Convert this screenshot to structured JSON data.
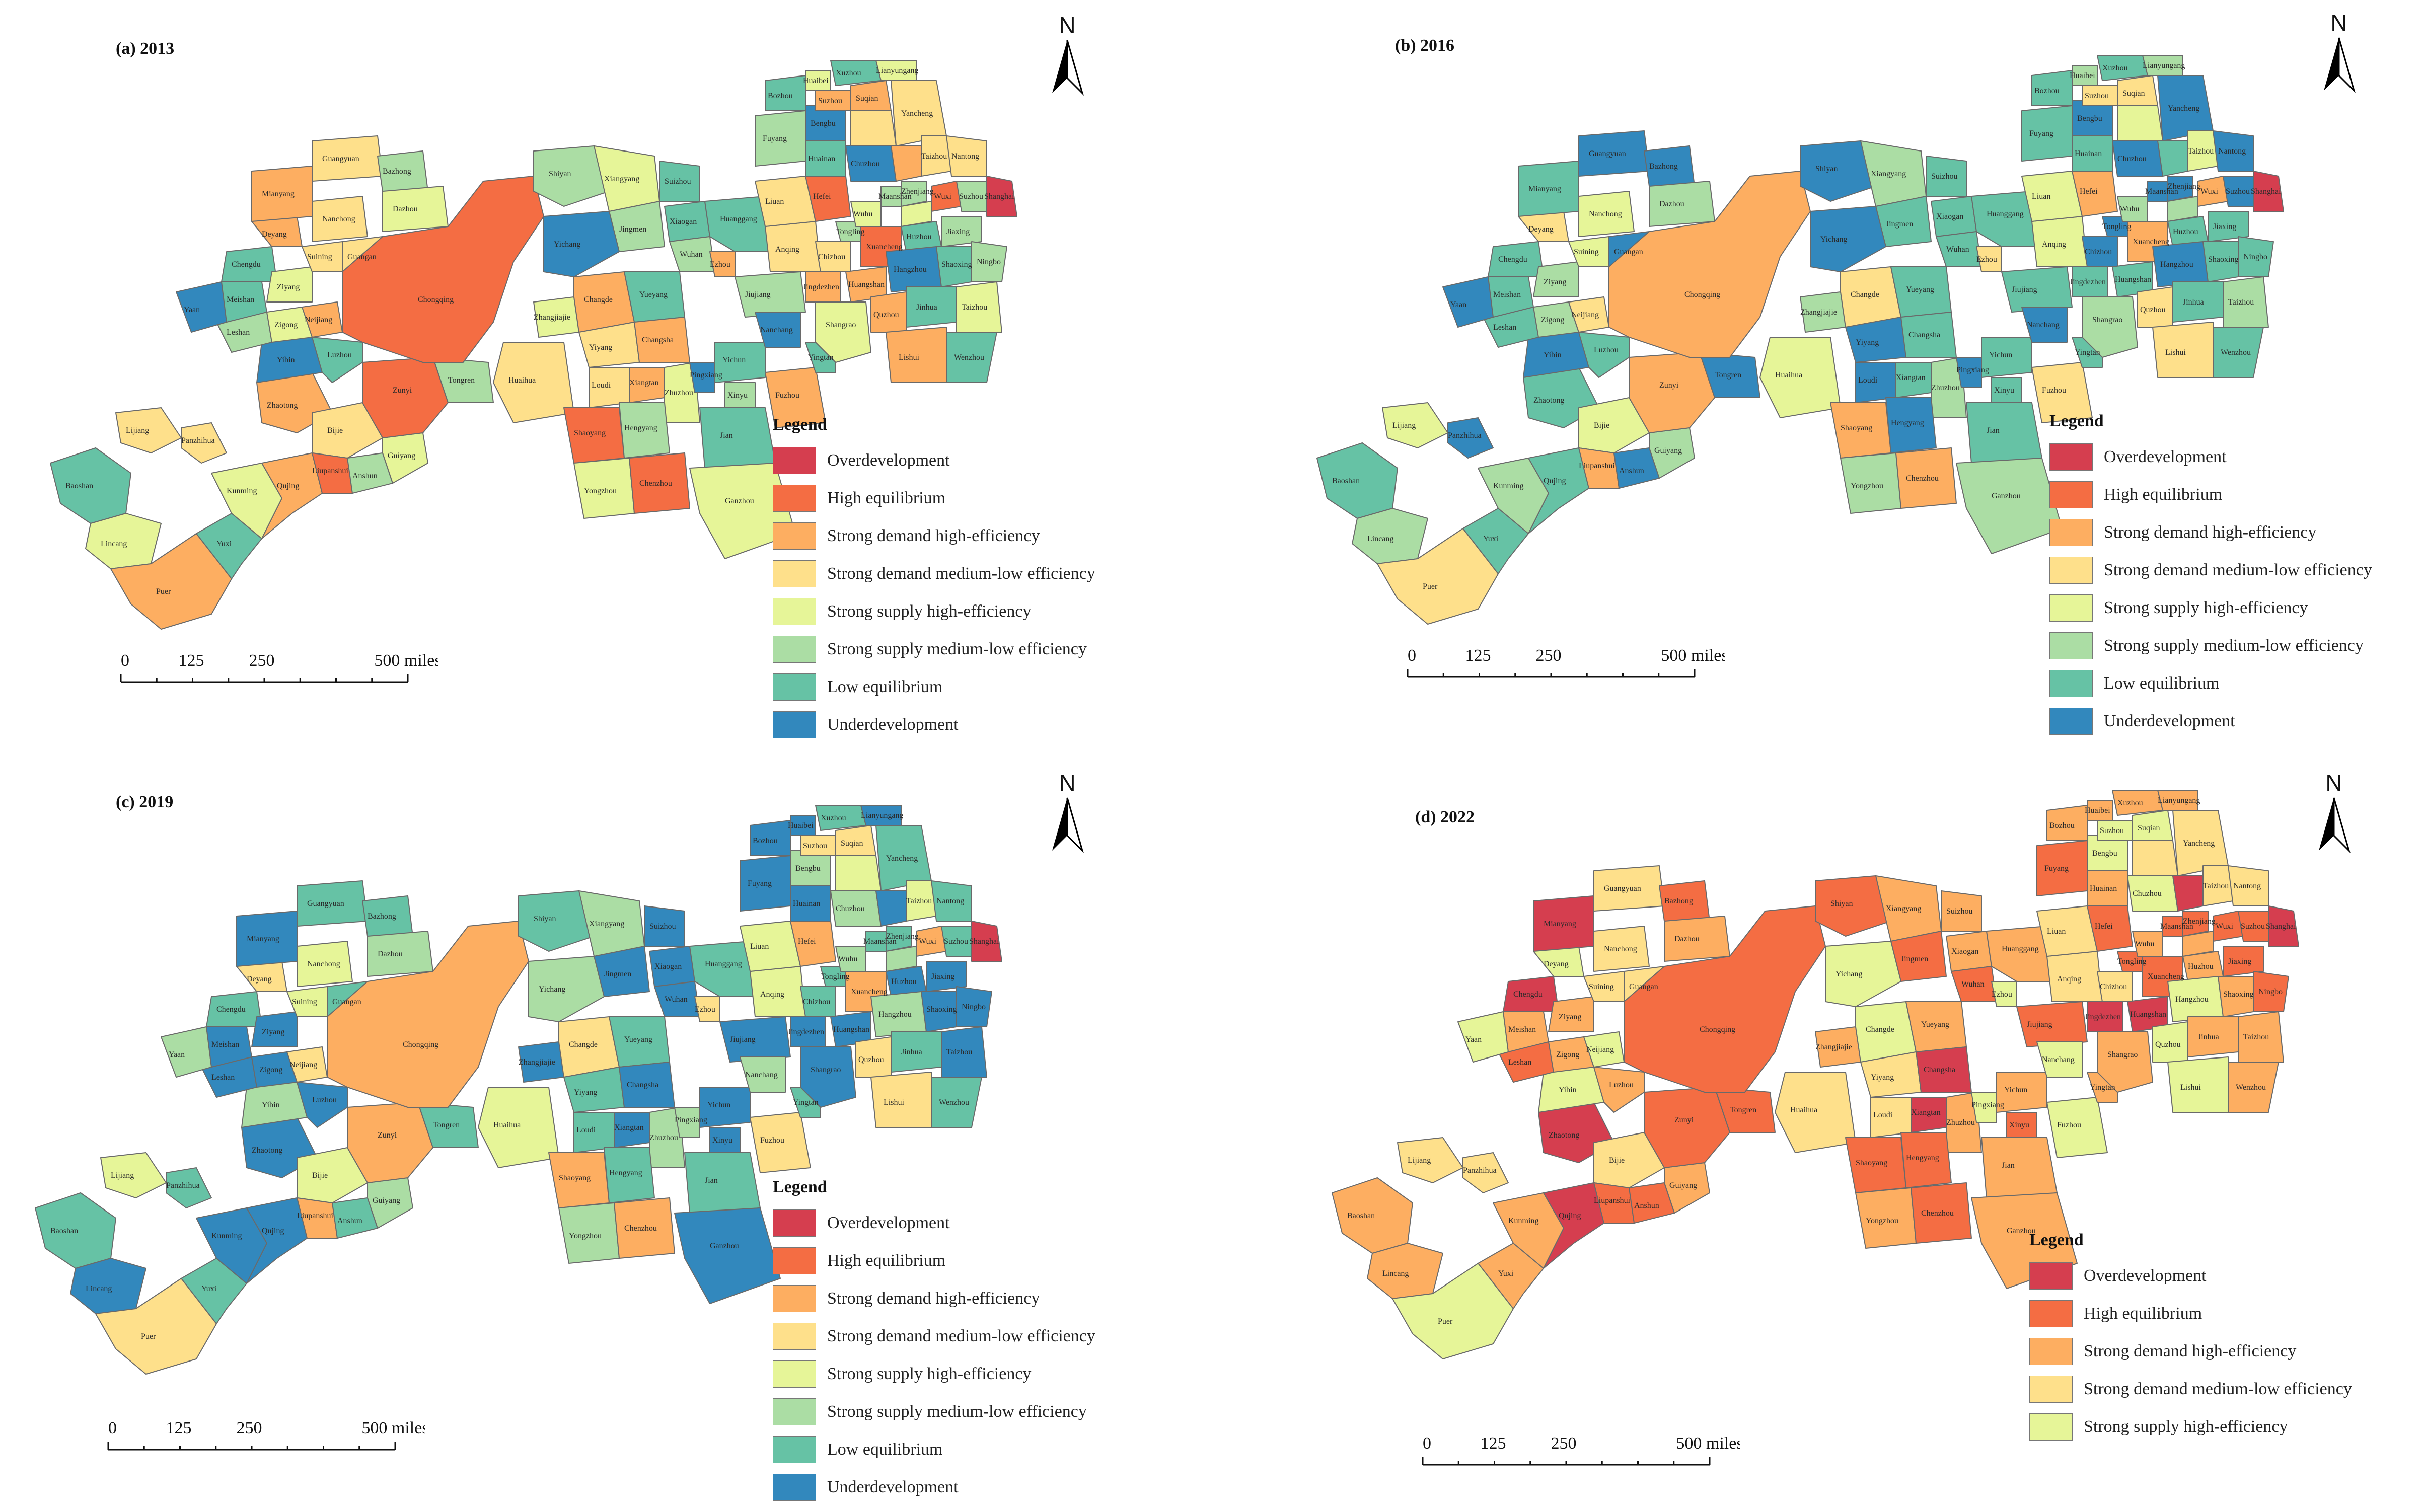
{
  "legend": {
    "title": "Legend",
    "categories": [
      {
        "label": "Overdevelopment",
        "color": "#d53e4f"
      },
      {
        "label": "High equilibrium",
        "color": "#f46d43"
      },
      {
        "label": "Strong demand high-efficiency",
        "color": "#fdae61"
      },
      {
        "label": "Strong demand medium-low efficiency",
        "color": "#fee08b"
      },
      {
        "label": "Strong supply high-efficiency",
        "color": "#e6f598"
      },
      {
        "label": "Strong supply medium-low efficiency",
        "color": "#abdda4"
      },
      {
        "label": "Low equilibrium",
        "color": "#66c2a5"
      },
      {
        "label": "Underdevelopment",
        "color": "#3288bd"
      }
    ]
  },
  "north_label": "N",
  "scale_bar": {
    "ticks": [
      "0",
      "125",
      "250",
      "500 miles"
    ]
  },
  "panels": [
    {
      "title": "(a) 2013",
      "legend_count": 8
    },
    {
      "title": "(b) 2016",
      "legend_count": 8
    },
    {
      "title": "(c) 2019",
      "legend_count": 8
    },
    {
      "title": "(d) 2022",
      "legend_count": 5
    }
  ],
  "cities": [
    "Lianyungang",
    "Xuzhou",
    "Suqian",
    "Huaibei",
    "Suzhou",
    "Yancheng",
    "Bozhou",
    "Fuyang",
    "Bengbu",
    "Huainan",
    "Taizhou",
    "Chuzhou",
    "Nantong",
    "Liuan",
    "Hefei",
    "Zhenjiang",
    "Shanghai",
    "Wuxi",
    "Huzhou",
    "Jiaxing",
    "Hangzhou",
    "Shaoxing",
    "Ningbo",
    "Jinhua",
    "Quzhou",
    "Lishui",
    "Wenzhou",
    "Shiyan",
    "Xiangyang",
    "Suizhou",
    "Xiaogan",
    "Jingmen",
    "Yichang",
    "Wuhan",
    "Ezhou",
    "Huanggang",
    "Anqing",
    "Chizhou",
    "Jingdezhen",
    "Jiujiang",
    "Nanchang",
    "Shangrao",
    "Yingtan",
    "Fuzhou",
    "Jian",
    "Ganzhou",
    "Yichun",
    "Pingxiang",
    "Xinyu",
    "Changsha",
    "Zhuzhou",
    "Xiangtan",
    "Hengyang",
    "Loudi",
    "Shaoyang",
    "Yiyang",
    "Changde",
    "Yueyang",
    "Zhangjiajie",
    "Huaihua",
    "Yongzhou",
    "Chenzhou",
    "Guangyuan",
    "Bazhong",
    "Mianyang",
    "Nanchong",
    "Dazhou",
    "Deyang",
    "Chengdu",
    "Suining",
    "Guangan",
    "Meishan",
    "Ziyang",
    "Neijiang",
    "Leshan",
    "Zigong",
    "Yaan",
    "Yibin",
    "Luzhou",
    "Chongqing",
    "Zunyi",
    "Tongren",
    "Zhaotong",
    "Bijie",
    "Guiyang",
    "Anshun",
    "Liupanshui",
    "Qujing",
    "Kunming",
    "Yuxi",
    "Lijiang",
    "Panzhihua",
    "Baoshan",
    "Lincang",
    "Puer",
    "Wuhu",
    "Maanshan",
    "Tongling",
    "Xuancheng",
    "Huangshan"
  ]
}
